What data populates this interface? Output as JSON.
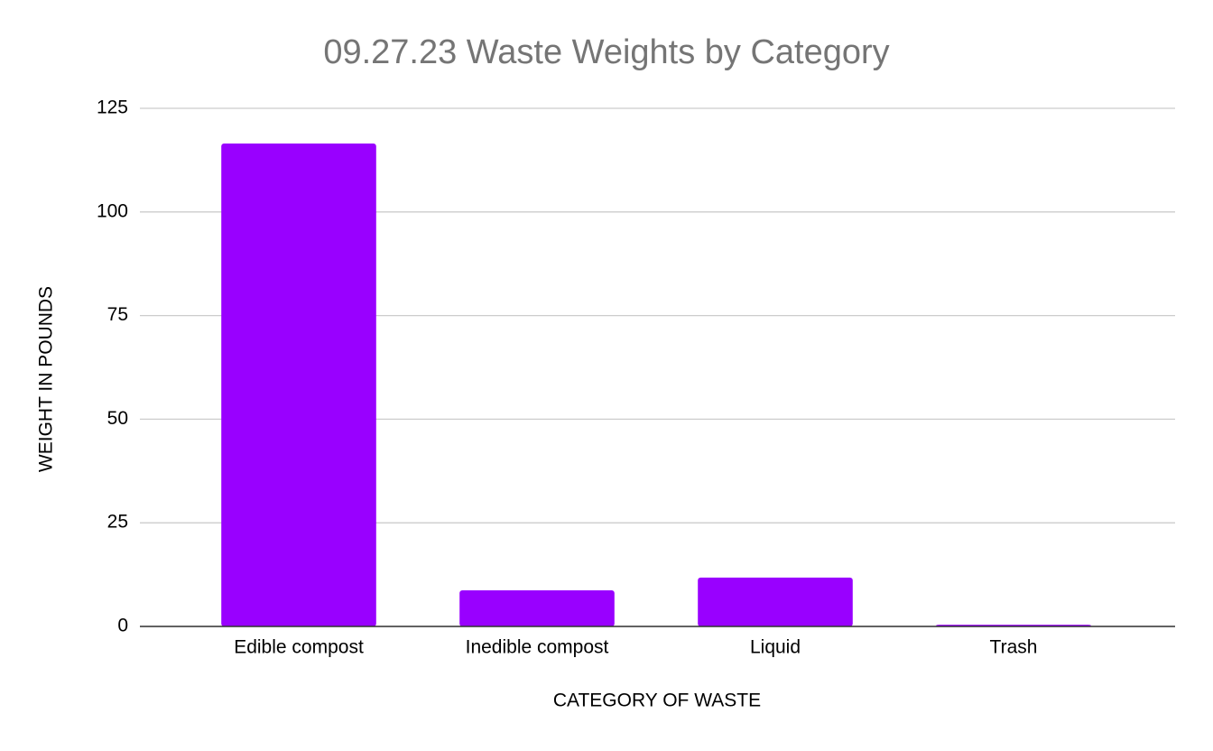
{
  "chart_data": {
    "type": "bar",
    "title": "09.27.23 Waste Weights by Category",
    "x_label": "CATEGORY OF WASTE",
    "y_label": "WEIGHT IN POUNDS",
    "categories": [
      "Edible compost",
      "Inedible compost",
      "Liquid",
      "Trash"
    ],
    "values": [
      116.5,
      8.7,
      11.8,
      0.4
    ],
    "color": "#9900ff",
    "ylim": [
      0,
      125
    ],
    "yticks": [
      0,
      25,
      50,
      75,
      100,
      125
    ],
    "grid": true
  }
}
